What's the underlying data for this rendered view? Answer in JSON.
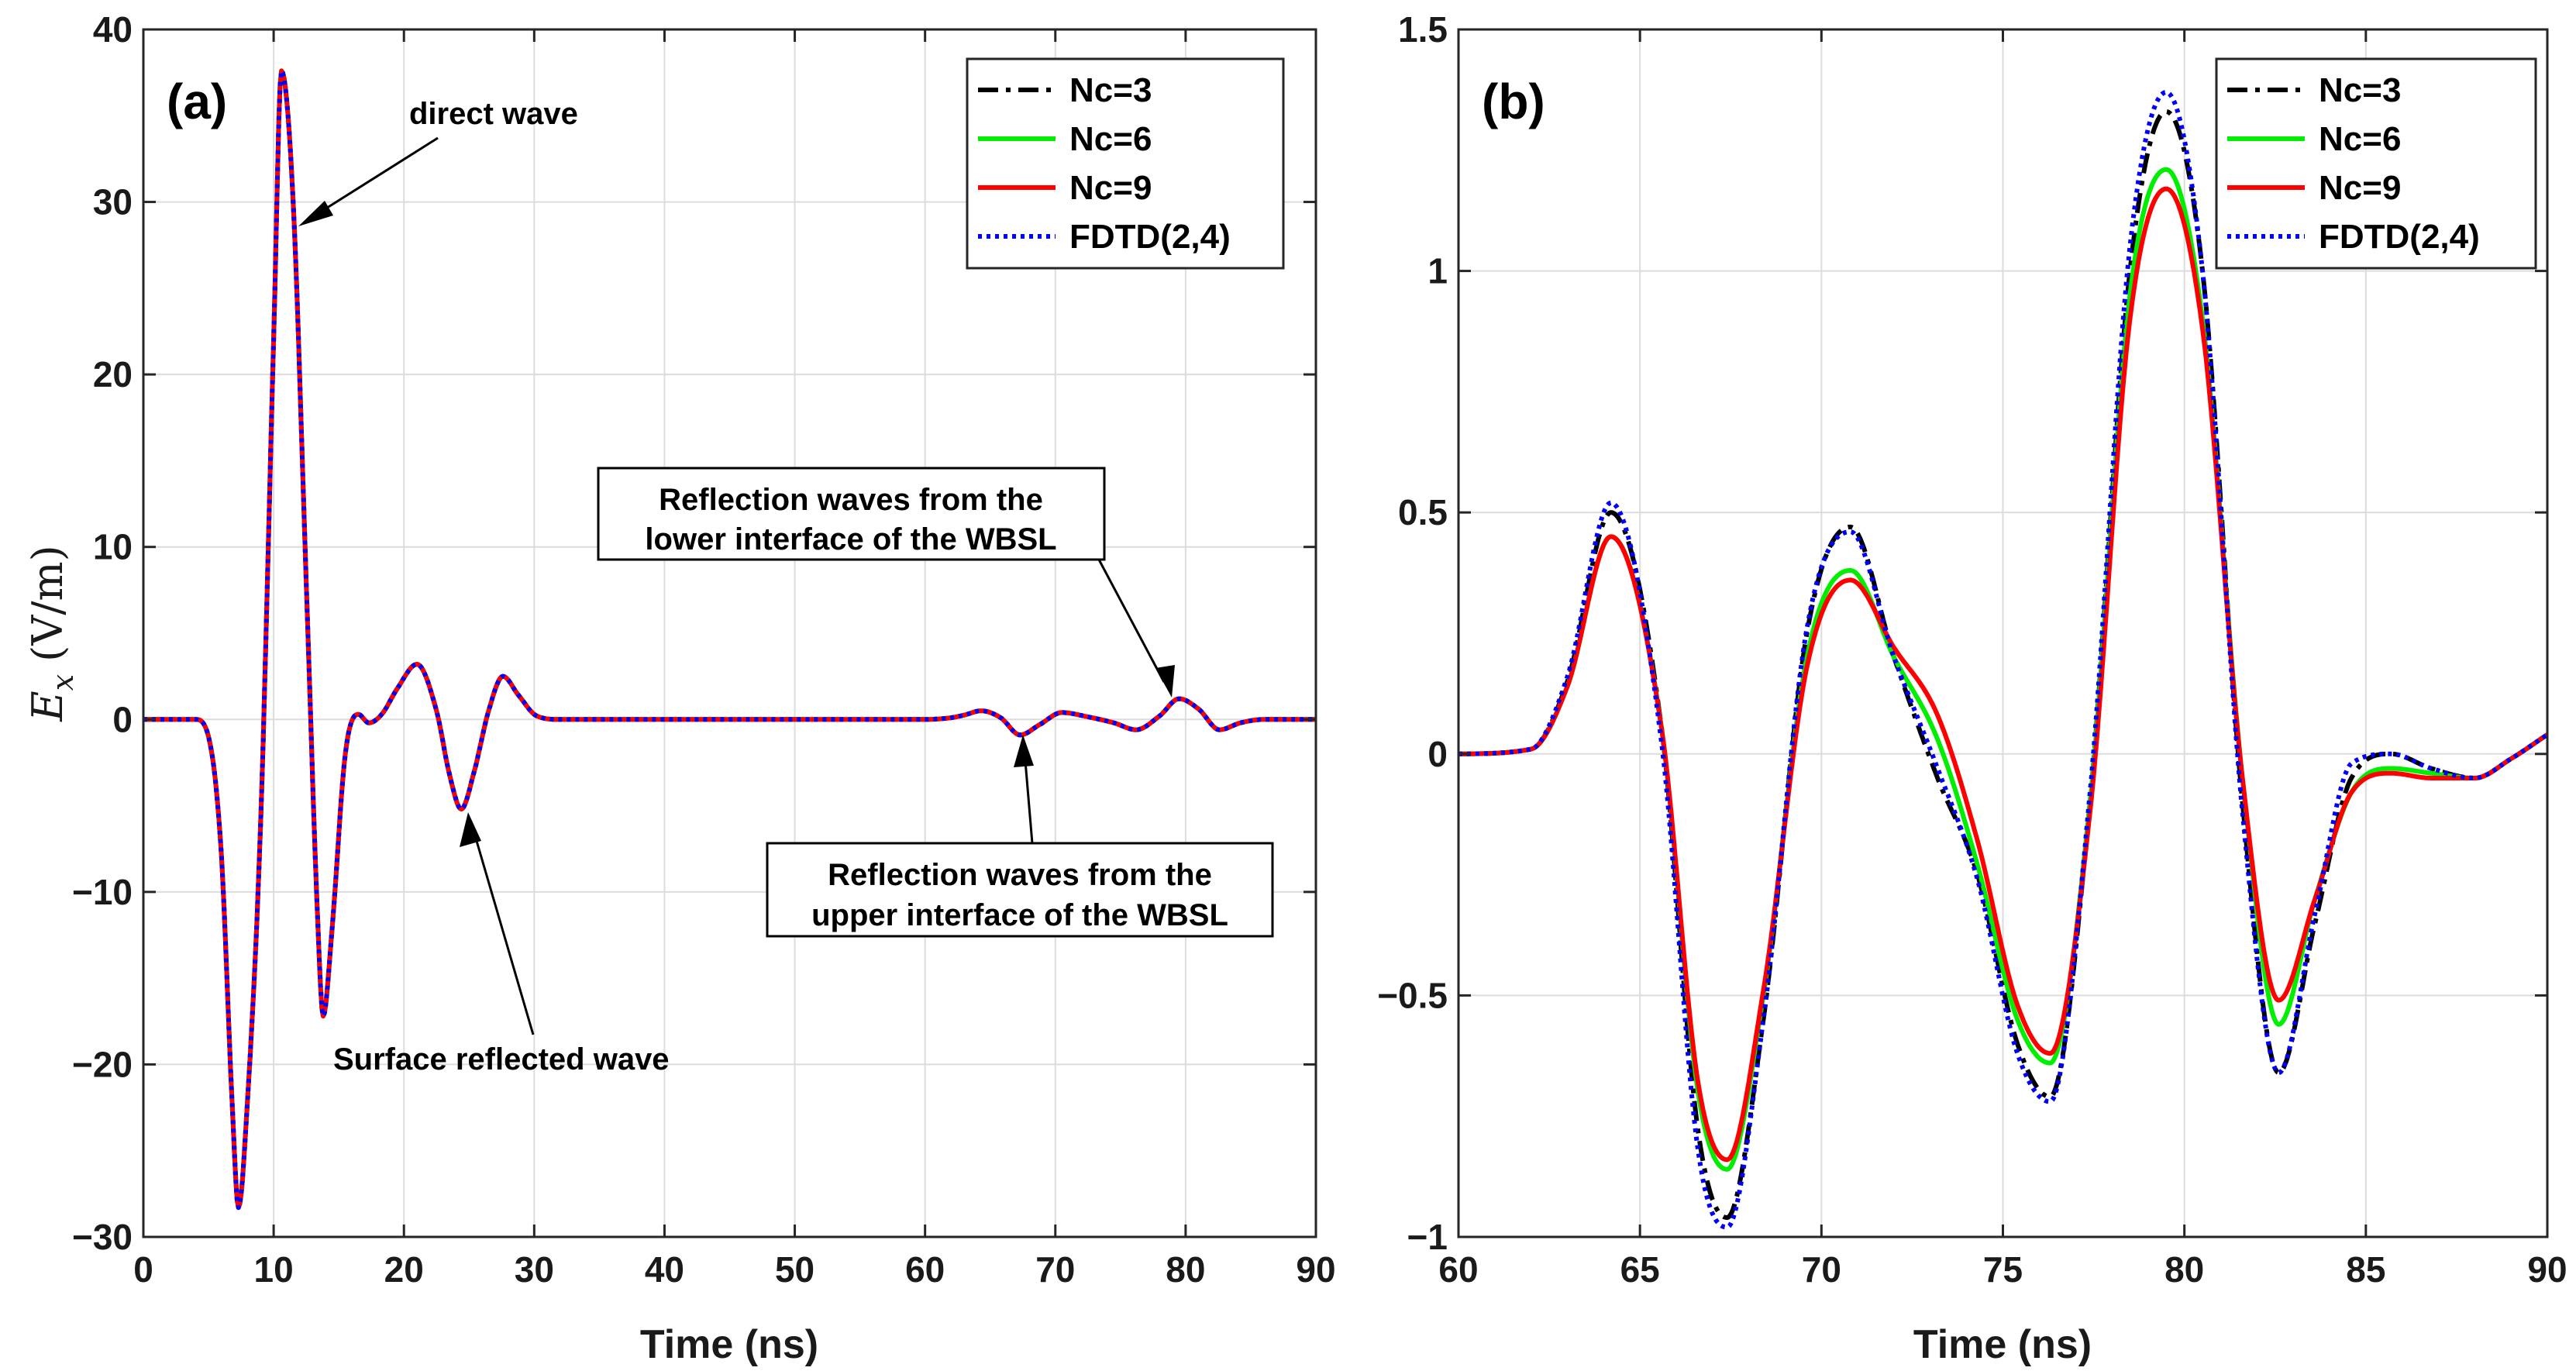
{
  "chart_data": [
    {
      "type": "line",
      "panel_label": "(a)",
      "xlabel": "Time (ns)",
      "ylabel_symbol": "E",
      "ylabel_sub": "x",
      "ylabel_unit": "(V/m)",
      "xlim": [
        0,
        90
      ],
      "ylim": [
        -30,
        40
      ],
      "xticks": [
        0,
        10,
        20,
        30,
        40,
        50,
        60,
        70,
        80,
        90
      ],
      "yticks": [
        -30,
        -20,
        -10,
        0,
        10,
        20,
        30,
        40
      ],
      "ytick_labels": [
        "−30",
        "−20",
        "−10",
        "0",
        "10",
        "20",
        "30",
        "40"
      ],
      "grid": true,
      "legend_position": "top-right",
      "series": [
        {
          "name": "Nc=3",
          "color": "#000000",
          "style": "dashdot"
        },
        {
          "name": "Nc=6",
          "color": "#00ee00",
          "style": "solid"
        },
        {
          "name": "Nc=9",
          "color": "#ff0000",
          "style": "solid"
        },
        {
          "name": "FDTD(2,4)",
          "color": "#0000ff",
          "style": "dotted"
        }
      ],
      "waveform": {
        "x": [
          0,
          4,
          5,
          6,
          6.8,
          7.3,
          8,
          9,
          10,
          10.6,
          11.5,
          12.5,
          13.4,
          13.8,
          14.5,
          15.5,
          16.5,
          17.3,
          18.3,
          19.5,
          21.0,
          22.5,
          23.5,
          24.4,
          25.4,
          26.5,
          27.6,
          28.8,
          30.2,
          32,
          50,
          60,
          62,
          63,
          64.3,
          65.8,
          67.3,
          68.8,
          70.5,
          72.5,
          74.5,
          76.2,
          78.0,
          79.5,
          81.0,
          82.6,
          84.2,
          86,
          90
        ],
        "y": [
          0,
          0,
          -1,
          -8,
          -22,
          -28.3,
          -22,
          -6,
          22,
          37.6,
          30,
          8,
          -12,
          -17.2,
          -12,
          -2,
          0.3,
          -0.2,
          0.3,
          1.8,
          3.2,
          0.5,
          -3.2,
          -5.2,
          -3,
          0.5,
          2.5,
          1.4,
          0.2,
          0,
          0,
          0,
          0.1,
          0.25,
          0.5,
          0.1,
          -0.9,
          -0.3,
          0.4,
          0.15,
          -0.2,
          -0.6,
          0.2,
          1.2,
          0.6,
          -0.6,
          -0.2,
          0,
          0
        ]
      },
      "annotations": [
        {
          "text": "direct wave",
          "boxed": false
        },
        {
          "text": "Surface reflected wave",
          "boxed": false
        },
        {
          "text": [
            "Reflection waves from the",
            "lower interface of the WBSL"
          ],
          "boxed": true
        },
        {
          "text": [
            "Reflection waves from the",
            "upper interface of the WBSL"
          ],
          "boxed": true
        }
      ]
    },
    {
      "type": "line",
      "panel_label": "(b)",
      "xlabel": "Time (ns)",
      "xlim": [
        60,
        90
      ],
      "ylim": [
        -1,
        1.5
      ],
      "xticks": [
        60,
        65,
        70,
        75,
        80,
        85,
        90
      ],
      "yticks": [
        -1,
        -0.5,
        0,
        0.5,
        1,
        1.5
      ],
      "ytick_labels": [
        "−1",
        "−0.5",
        "0",
        "0.5",
        "1",
        "1.5"
      ],
      "grid": true,
      "legend_position": "top-center",
      "series": [
        {
          "name": "Nc=3",
          "color": "#000000",
          "style": "dashdot",
          "x": [
            60,
            62,
            63,
            64.2,
            65.6,
            66.6,
            67.4,
            68.4,
            69.6,
            70.8,
            72.0,
            73.2,
            74.3,
            75.4,
            76.3,
            77.4,
            78.5,
            79.5,
            80.5,
            81.6,
            82.6,
            83.6,
            84.6,
            85.7,
            86.8,
            88,
            89,
            90
          ],
          "y": [
            0,
            0.01,
            0.15,
            0.5,
            0.05,
            -0.78,
            -0.96,
            -0.55,
            0.25,
            0.47,
            0.2,
            -0.05,
            -0.25,
            -0.6,
            -0.71,
            -0.1,
            1.0,
            1.33,
            1.0,
            -0.1,
            -0.66,
            -0.35,
            -0.05,
            0.0,
            -0.03,
            -0.05,
            -0.01,
            0.04
          ]
        },
        {
          "name": "Nc=6",
          "color": "#00ee00",
          "style": "solid",
          "x": [
            60,
            62,
            63,
            64.2,
            65.6,
            66.6,
            67.4,
            68.4,
            69.6,
            70.8,
            72.0,
            73.2,
            74.3,
            75.4,
            76.3,
            77.4,
            78.5,
            79.5,
            80.5,
            81.6,
            82.6,
            83.6,
            84.6,
            85.7,
            86.8,
            88,
            89,
            90
          ],
          "y": [
            0,
            0.01,
            0.14,
            0.45,
            0.05,
            -0.7,
            -0.86,
            -0.5,
            0.2,
            0.38,
            0.2,
            0.03,
            -0.23,
            -0.55,
            -0.64,
            -0.1,
            0.95,
            1.21,
            0.9,
            -0.05,
            -0.56,
            -0.3,
            -0.08,
            -0.03,
            -0.04,
            -0.05,
            -0.01,
            0.04
          ]
        },
        {
          "name": "Nc=9",
          "color": "#ff0000",
          "style": "solid",
          "x": [
            60,
            62,
            63,
            64.2,
            65.6,
            66.6,
            67.4,
            68.4,
            69.6,
            70.8,
            72.0,
            73.2,
            74.3,
            75.4,
            76.3,
            77.4,
            78.5,
            79.5,
            80.5,
            81.6,
            82.6,
            83.6,
            84.6,
            85.7,
            86.8,
            88,
            89,
            90
          ],
          "y": [
            0,
            0.01,
            0.14,
            0.45,
            0.05,
            -0.68,
            -0.84,
            -0.49,
            0.18,
            0.36,
            0.22,
            0.08,
            -0.18,
            -0.52,
            -0.62,
            -0.12,
            0.9,
            1.17,
            0.88,
            -0.05,
            -0.51,
            -0.3,
            -0.08,
            -0.04,
            -0.05,
            -0.05,
            -0.01,
            0.04
          ]
        },
        {
          "name": "FDTD(2,4)",
          "color": "#0000ff",
          "style": "dotted",
          "x": [
            60,
            62,
            63,
            64.2,
            65.6,
            66.6,
            67.4,
            68.4,
            69.6,
            70.8,
            72.0,
            73.2,
            74.3,
            75.4,
            76.3,
            77.4,
            78.5,
            79.5,
            80.5,
            81.6,
            82.6,
            83.6,
            84.6,
            85.7,
            86.8,
            88,
            89,
            90
          ],
          "y": [
            0,
            0.01,
            0.16,
            0.52,
            0.02,
            -0.82,
            -0.98,
            -0.55,
            0.26,
            0.46,
            0.2,
            -0.03,
            -0.26,
            -0.62,
            -0.72,
            -0.08,
            1.05,
            1.37,
            1.0,
            -0.12,
            -0.66,
            -0.33,
            -0.02,
            0.0,
            -0.03,
            -0.05,
            -0.01,
            0.04
          ]
        }
      ]
    }
  ]
}
